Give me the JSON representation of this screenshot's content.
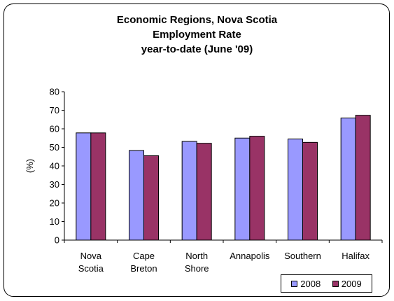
{
  "chart_data": {
    "type": "bar",
    "title": [
      "Economic Regions, Nova Scotia",
      "Employment Rate",
      "year-to-date (June '09)"
    ],
    "ylabel": "(%)",
    "xlabel": "",
    "ylim": [
      0,
      80
    ],
    "yticks": [
      0,
      10,
      20,
      30,
      40,
      50,
      60,
      70,
      80
    ],
    "grid": false,
    "legend_position": "bottom-right",
    "categories": [
      [
        "Nova",
        "Scotia"
      ],
      [
        "Cape",
        "Breton"
      ],
      [
        "North",
        "Shore"
      ],
      [
        "Annapolis"
      ],
      [
        "Southern"
      ],
      [
        "Halifax"
      ]
    ],
    "series": [
      {
        "name": "2008",
        "color": "#9999ff",
        "values": [
          57.8,
          48.3,
          53.2,
          55.0,
          54.5,
          65.8
        ]
      },
      {
        "name": "2009",
        "color": "#993366",
        "values": [
          57.8,
          45.5,
          52.2,
          56.0,
          52.7,
          67.3
        ]
      }
    ]
  }
}
